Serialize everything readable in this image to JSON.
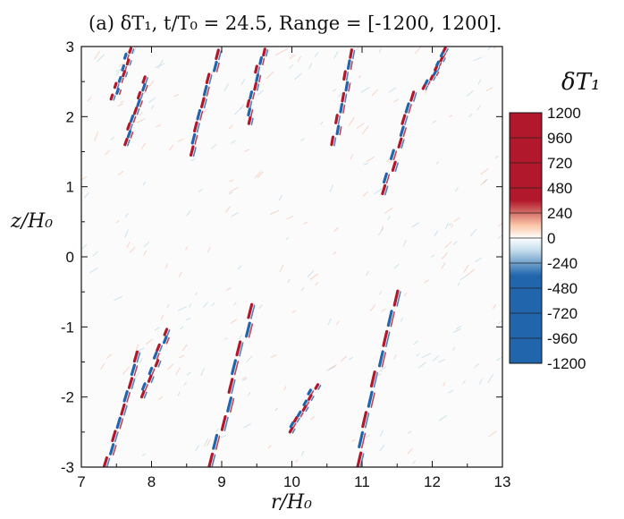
{
  "chart_data": {
    "type": "heatmap",
    "title": "(a) δT₁, t/T₀ = 24.5, Range = [-1200, 1200].",
    "xlabel": "r/H₀",
    "ylabel": "z/H₀",
    "xlim": [
      7,
      13
    ],
    "ylim": [
      -3,
      3
    ],
    "x_ticks": [
      "7",
      "8",
      "9",
      "10",
      "11",
      "12",
      "13"
    ],
    "y_ticks": [
      "-3",
      "-2",
      "-1",
      "0",
      "1",
      "2",
      "3"
    ],
    "x_tick_values": [
      7,
      8,
      9,
      10,
      11,
      12,
      13
    ],
    "y_tick_values": [
      -3,
      -2,
      -1,
      0,
      1,
      2,
      3
    ],
    "colorbar": {
      "title": "δT₁",
      "range": [
        -1200,
        1200
      ],
      "tick_values": [
        1200,
        960,
        720,
        480,
        240,
        0,
        -240,
        -480,
        -720,
        -960,
        -1200
      ],
      "tick_labels": [
        "1200",
        "960",
        "720",
        "480",
        "240",
        "0",
        "-240",
        "-480",
        "-720",
        "-960",
        "-1200"
      ],
      "colormap": "blue-white-red",
      "colors": {
        "neg": "#2166ac",
        "mid": "#ffffff",
        "pos": "#b2182b"
      }
    },
    "field_description_values": {
      "background": 0,
      "streak_amplitude": 1200
    },
    "filaments_upper": [
      {
        "x": [
          7.45,
          7.7
        ],
        "y": [
          2.25,
          3.0
        ]
      },
      {
        "x": [
          7.6,
          7.95
        ],
        "y": [
          1.6,
          2.6
        ]
      },
      {
        "x": [
          8.55,
          8.95
        ],
        "y": [
          1.45,
          3.0
        ]
      },
      {
        "x": [
          9.35,
          9.6
        ],
        "y": [
          1.9,
          3.0
        ]
      },
      {
        "x": [
          10.6,
          10.85
        ],
        "y": [
          1.6,
          3.0
        ]
      },
      {
        "x": [
          11.9,
          12.2
        ],
        "y": [
          2.4,
          3.0
        ]
      },
      {
        "x": [
          11.3,
          11.75
        ],
        "y": [
          0.9,
          2.4
        ]
      }
    ],
    "filaments_lower": [
      {
        "x": [
          7.35,
          7.85
        ],
        "y": [
          -3.0,
          -1.3
        ]
      },
      {
        "x": [
          7.85,
          8.25
        ],
        "y": [
          -2.0,
          -1.0
        ]
      },
      {
        "x": [
          8.85,
          9.45
        ],
        "y": [
          -3.0,
          -0.6
        ]
      },
      {
        "x": [
          9.95,
          10.35
        ],
        "y": [
          -2.5,
          -1.8
        ]
      },
      {
        "x": [
          10.9,
          11.5
        ],
        "y": [
          -3.0,
          -0.4
        ]
      }
    ]
  }
}
